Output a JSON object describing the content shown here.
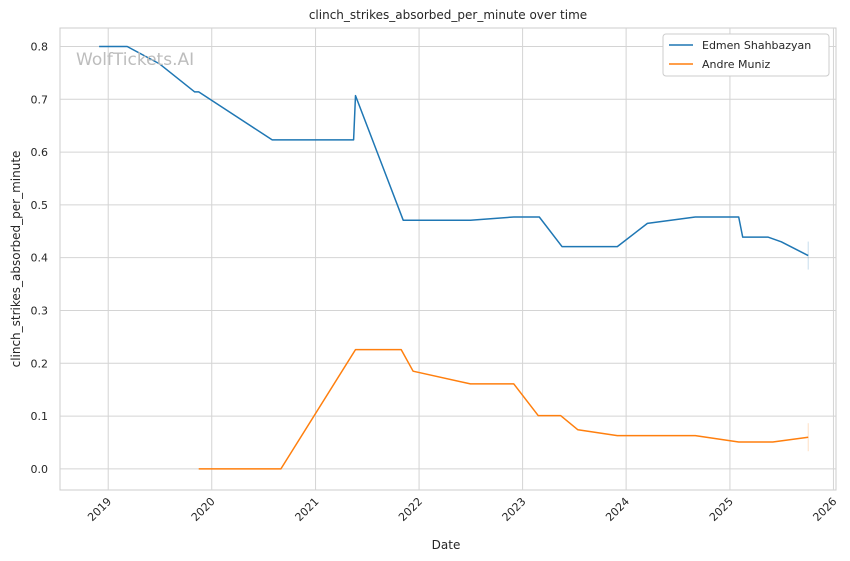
{
  "watermark": "WolfTickets.AI",
  "chart_data": {
    "type": "line",
    "title": "clinch_strikes_absorbed_per_minute over time",
    "xlabel": "Date",
    "ylabel": "clinch_strikes_absorbed_per_minute",
    "xlim": [
      "2018-07-15",
      "2026-01-10"
    ],
    "ylim": [
      -0.04,
      0.835
    ],
    "x_ticks": [
      "2019",
      "2020",
      "2021",
      "2022",
      "2023",
      "2024",
      "2025",
      "2026"
    ],
    "y_ticks": [
      "0.0",
      "0.1",
      "0.2",
      "0.3",
      "0.4",
      "0.5",
      "0.6",
      "0.7",
      "0.8"
    ],
    "grid": true,
    "legend_position": "top-right",
    "series": [
      {
        "name": "Edmen Shahbazyan",
        "color": "#1f77b4",
        "points": [
          [
            "2018-11-30",
            0.8
          ],
          [
            "2019-03-09",
            0.8
          ],
          [
            "2019-07-01",
            0.767
          ],
          [
            "2019-11-02",
            0.714
          ],
          [
            "2019-11-16",
            0.714
          ],
          [
            "2020-08-01",
            0.623
          ],
          [
            "2021-05-15",
            0.623
          ],
          [
            "2021-05-22",
            0.707
          ],
          [
            "2021-11-06",
            0.471
          ],
          [
            "2022-07-01",
            0.471
          ],
          [
            "2022-12-01",
            0.477
          ],
          [
            "2023-03-01",
            0.477
          ],
          [
            "2023-05-20",
            0.421
          ],
          [
            "2023-12-01",
            0.421
          ],
          [
            "2024-03-16",
            0.465
          ],
          [
            "2024-09-01",
            0.477
          ],
          [
            "2025-02-01",
            0.477
          ],
          [
            "2025-02-15",
            0.439
          ],
          [
            "2025-05-15",
            0.439
          ],
          [
            "2025-07-01",
            0.43
          ],
          [
            "2025-10-04",
            0.404
          ]
        ]
      },
      {
        "name": "Andre Muniz",
        "color": "#ff7f0e",
        "points": [
          [
            "2019-11-16",
            0.0
          ],
          [
            "2020-09-01",
            0.0
          ],
          [
            "2021-05-22",
            0.226
          ],
          [
            "2021-10-30",
            0.226
          ],
          [
            "2021-12-11",
            0.185
          ],
          [
            "2022-07-01",
            0.161
          ],
          [
            "2022-12-01",
            0.161
          ],
          [
            "2023-02-25",
            0.101
          ],
          [
            "2023-05-15",
            0.101
          ],
          [
            "2023-07-15",
            0.074
          ],
          [
            "2023-12-01",
            0.063
          ],
          [
            "2024-09-01",
            0.063
          ],
          [
            "2025-02-01",
            0.051
          ],
          [
            "2025-06-01",
            0.051
          ],
          [
            "2025-10-04",
            0.06
          ]
        ]
      }
    ]
  }
}
